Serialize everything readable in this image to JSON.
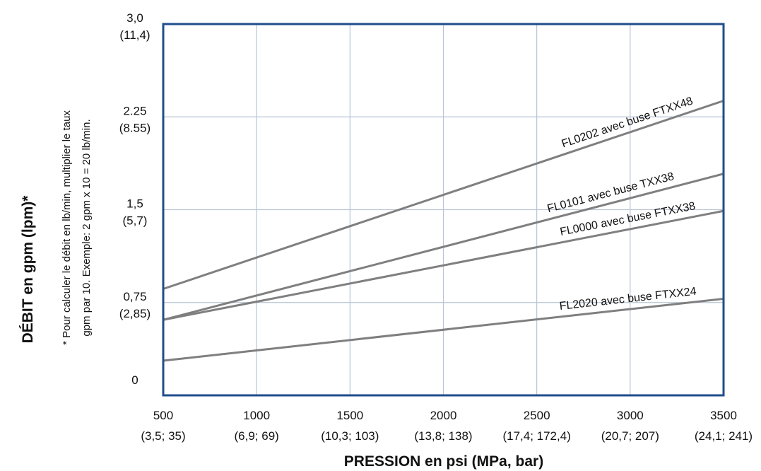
{
  "chart_data": {
    "type": "line",
    "xlabel": "PRESSION en psi (MPa, bar)",
    "ylabel": "DÉBIT en gpm (lpm)*",
    "note": [
      "* Pour calculer le débit en lb/min, multiplier le taux",
      "gpm par 10. Exemple: 2 gpm x 10 = 20 lb/min."
    ],
    "xlim": [
      500,
      3500
    ],
    "ylim": [
      0,
      3.0
    ],
    "grid": true,
    "x_ticks": [
      {
        "value": 500,
        "label": "500",
        "sublabel": "(3,5; 35)"
      },
      {
        "value": 1000,
        "label": "1000",
        "sublabel": "(6,9; 69)"
      },
      {
        "value": 1500,
        "label": "1500",
        "sublabel": "(10,3; 103)"
      },
      {
        "value": 2000,
        "label": "2000",
        "sublabel": "(13,8; 138)"
      },
      {
        "value": 2500,
        "label": "2500",
        "sublabel": "(17,4; 172,4)"
      },
      {
        "value": 3000,
        "label": "3000",
        "sublabel": "(20,7; 207)"
      },
      {
        "value": 3500,
        "label": "3500",
        "sublabel": "(24,1; 241)"
      }
    ],
    "y_ticks": [
      {
        "value": 0,
        "label": "0",
        "sublabel": ""
      },
      {
        "value": 0.75,
        "label": "0,75",
        "sublabel": "(2,85)"
      },
      {
        "value": 1.5,
        "label": "1,5",
        "sublabel": "(5,7)"
      },
      {
        "value": 2.25,
        "label": "2.25",
        "sublabel": "(8.55)"
      },
      {
        "value": 3.0,
        "label": "3,0",
        "sublabel": "(11,4)"
      }
    ],
    "series": [
      {
        "name": "FL0202 avec buse FTXX48",
        "x": [
          500,
          3500
        ],
        "y": [
          0.86,
          2.38
        ]
      },
      {
        "name": "FL0101 avec buse TXX38",
        "x": [
          500,
          3500
        ],
        "y": [
          0.61,
          1.79
        ]
      },
      {
        "name": "FL0000 avec buse FTXX38",
        "x": [
          500,
          3500
        ],
        "y": [
          0.61,
          1.49
        ]
      },
      {
        "name": "FL2020 avec buse FTXX24",
        "x": [
          500,
          3500
        ],
        "y": [
          0.28,
          0.78
        ]
      }
    ],
    "colors": {
      "frame": "#1f4e8c",
      "grid": "#b8c4d4",
      "line": "#7f7f7f"
    }
  }
}
